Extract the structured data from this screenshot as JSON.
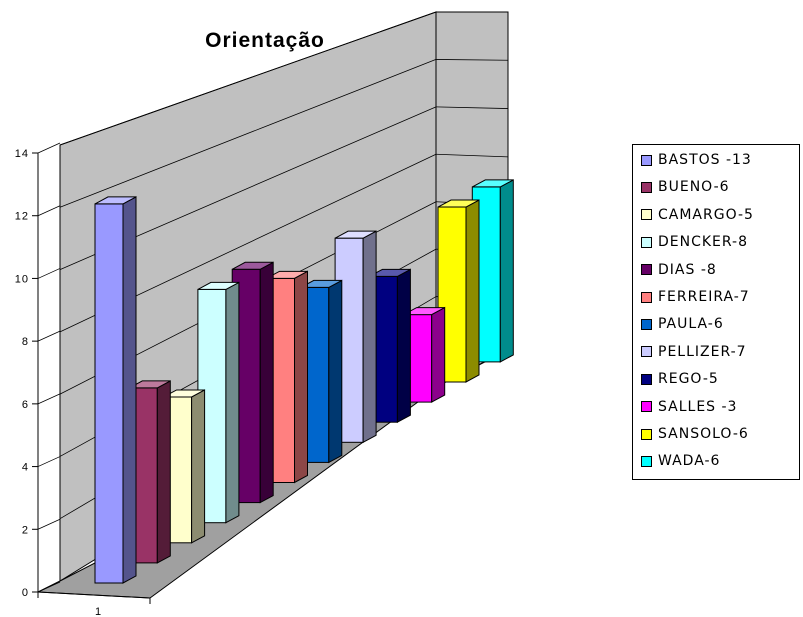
{
  "chart_data": {
    "type": "bar",
    "title": "Orientação",
    "categories": [
      "1"
    ],
    "yticks": [
      "0",
      "2",
      "4",
      "6",
      "8",
      "10",
      "12",
      "14"
    ],
    "ylim": [
      0,
      14
    ],
    "grid": true,
    "legend_position": "right",
    "series": [
      {
        "name": "BASTOS -13",
        "values": [
          13
        ],
        "color": "#9999ff"
      },
      {
        "name": "BUENO-6",
        "values": [
          6
        ],
        "color": "#993366"
      },
      {
        "name": "CAMARGO-5",
        "values": [
          5
        ],
        "color": "#ffffcc"
      },
      {
        "name": "DENCKER-8",
        "values": [
          8
        ],
        "color": "#ccffff"
      },
      {
        "name": "DIAS -8",
        "values": [
          8
        ],
        "color": "#660066"
      },
      {
        "name": "FERREIRA-7",
        "values": [
          7
        ],
        "color": "#ff8080"
      },
      {
        "name": "PAULA-6",
        "values": [
          6
        ],
        "color": "#0066cc"
      },
      {
        "name": "PELLIZER-7",
        "values": [
          7
        ],
        "color": "#ccccff"
      },
      {
        "name": "REGO-5",
        "values": [
          5
        ],
        "color": "#000080"
      },
      {
        "name": "SALLES -3",
        "values": [
          3
        ],
        "color": "#ff00ff"
      },
      {
        "name": "SANSOLO-6",
        "values": [
          6
        ],
        "color": "#ffff00"
      },
      {
        "name": "WADA-6",
        "values": [
          6
        ],
        "color": "#00ffff"
      }
    ]
  }
}
